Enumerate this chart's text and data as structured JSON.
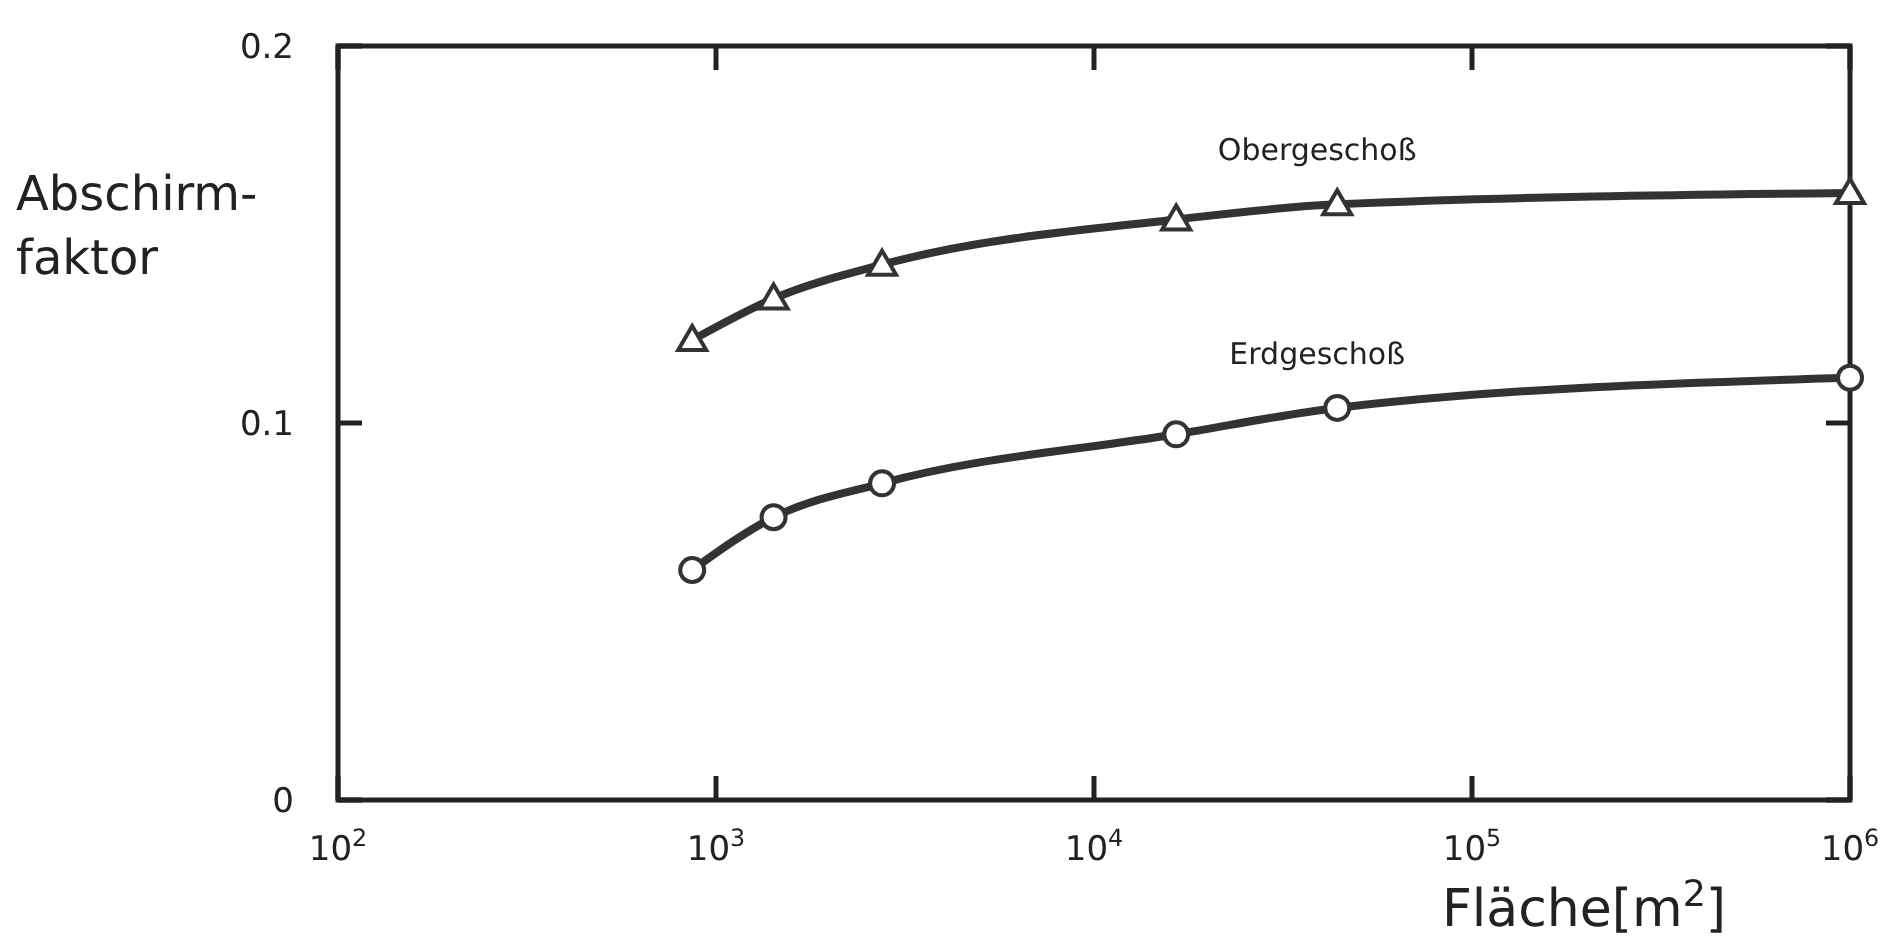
{
  "chart_data": {
    "type": "line",
    "xlabel": "Fläche[m$^{2}$]",
    "ylabel": "Abschirm-\nfaktor",
    "log": "x",
    "xlim": [
      100,
      1000000
    ],
    "ylim": [
      0,
      0.2
    ],
    "xticks": [
      {
        "value": 100,
        "label": "10$^{2}$"
      },
      {
        "value": 1000,
        "label": "10$^{3}$"
      },
      {
        "value": 10000,
        "label": "10$^{4}$"
      },
      {
        "value": 100000,
        "label": "10$^{5}$"
      },
      {
        "value": 1000000,
        "label": "10$^{6}$"
      }
    ],
    "yticks": [
      0,
      0.1,
      0.2
    ],
    "grid": false,
    "series": [
      {
        "name": "Obergeschoß",
        "color": "#333333",
        "marker": "triangle",
        "x": [
          865,
          1420,
          2750,
          16500,
          44000,
          1000000
        ],
        "values": [
          0.122,
          0.133,
          0.142,
          0.154,
          0.158,
          0.161
        ]
      },
      {
        "name": "Erdgeschoß",
        "color": "#333333",
        "marker": "circle",
        "x": [
          865,
          1420,
          2750,
          16500,
          44000,
          1000000
        ],
        "values": [
          0.061,
          0.075,
          0.084,
          0.097,
          0.104,
          0.112
        ]
      }
    ]
  }
}
